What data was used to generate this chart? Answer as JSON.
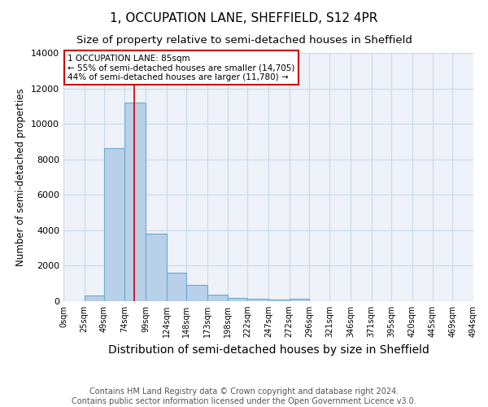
{
  "title": "1, OCCUPATION LANE, SHEFFIELD, S12 4PR",
  "subtitle": "Size of property relative to semi-detached houses in Sheffield",
  "xlabel": "Distribution of semi-detached houses by size in Sheffield",
  "ylabel": "Number of semi-detached properties",
  "footnote1": "Contains HM Land Registry data © Crown copyright and database right 2024.",
  "footnote2": "Contains public sector information licensed under the Open Government Licence v3.0.",
  "annotation_line1": "1 OCCUPATION LANE: 85sqm",
  "annotation_line2": "← 55% of semi-detached houses are smaller (14,705)",
  "annotation_line3": "44% of semi-detached houses are larger (11,780) →",
  "property_size": 85,
  "bar_left_edges": [
    0,
    25,
    49,
    74,
    99,
    124,
    148,
    173,
    198,
    222,
    247,
    272,
    296,
    321,
    346,
    371,
    395,
    420,
    445,
    469
  ],
  "bar_values": [
    0,
    300,
    8650,
    11200,
    3800,
    1600,
    900,
    380,
    200,
    120,
    80,
    150,
    0,
    0,
    0,
    0,
    0,
    0,
    0,
    0
  ],
  "tick_positions": [
    0,
    25,
    49,
    74,
    99,
    124,
    148,
    173,
    198,
    222,
    247,
    272,
    296,
    321,
    346,
    371,
    395,
    420,
    445,
    469,
    494
  ],
  "tick_labels": [
    "0sqm",
    "25sqm",
    "49sqm",
    "74sqm",
    "99sqm",
    "124sqm",
    "148sqm",
    "173sqm",
    "198sqm",
    "222sqm",
    "247sqm",
    "272sqm",
    "296sqm",
    "321sqm",
    "346sqm",
    "371sqm",
    "395sqm",
    "420sqm",
    "445sqm",
    "469sqm",
    "494sqm"
  ],
  "bar_color": "#b8d0e8",
  "bar_edge_color": "#6aaad4",
  "vline_color": "#cc0000",
  "ylim": [
    0,
    14000
  ],
  "yticks": [
    0,
    2000,
    4000,
    6000,
    8000,
    10000,
    12000,
    14000
  ],
  "xlim": [
    0,
    494
  ],
  "grid_color": "#c8d8e8",
  "bg_color": "#eef2f8",
  "annotation_box_facecolor": "#ffffff",
  "annotation_box_edgecolor": "#cc0000",
  "title_fontsize": 11,
  "subtitle_fontsize": 9.5,
  "xlabel_fontsize": 10,
  "ylabel_fontsize": 8.5,
  "tick_fontsize": 7,
  "ytick_fontsize": 8,
  "annotation_fontsize": 7.5,
  "footnote_fontsize": 7
}
